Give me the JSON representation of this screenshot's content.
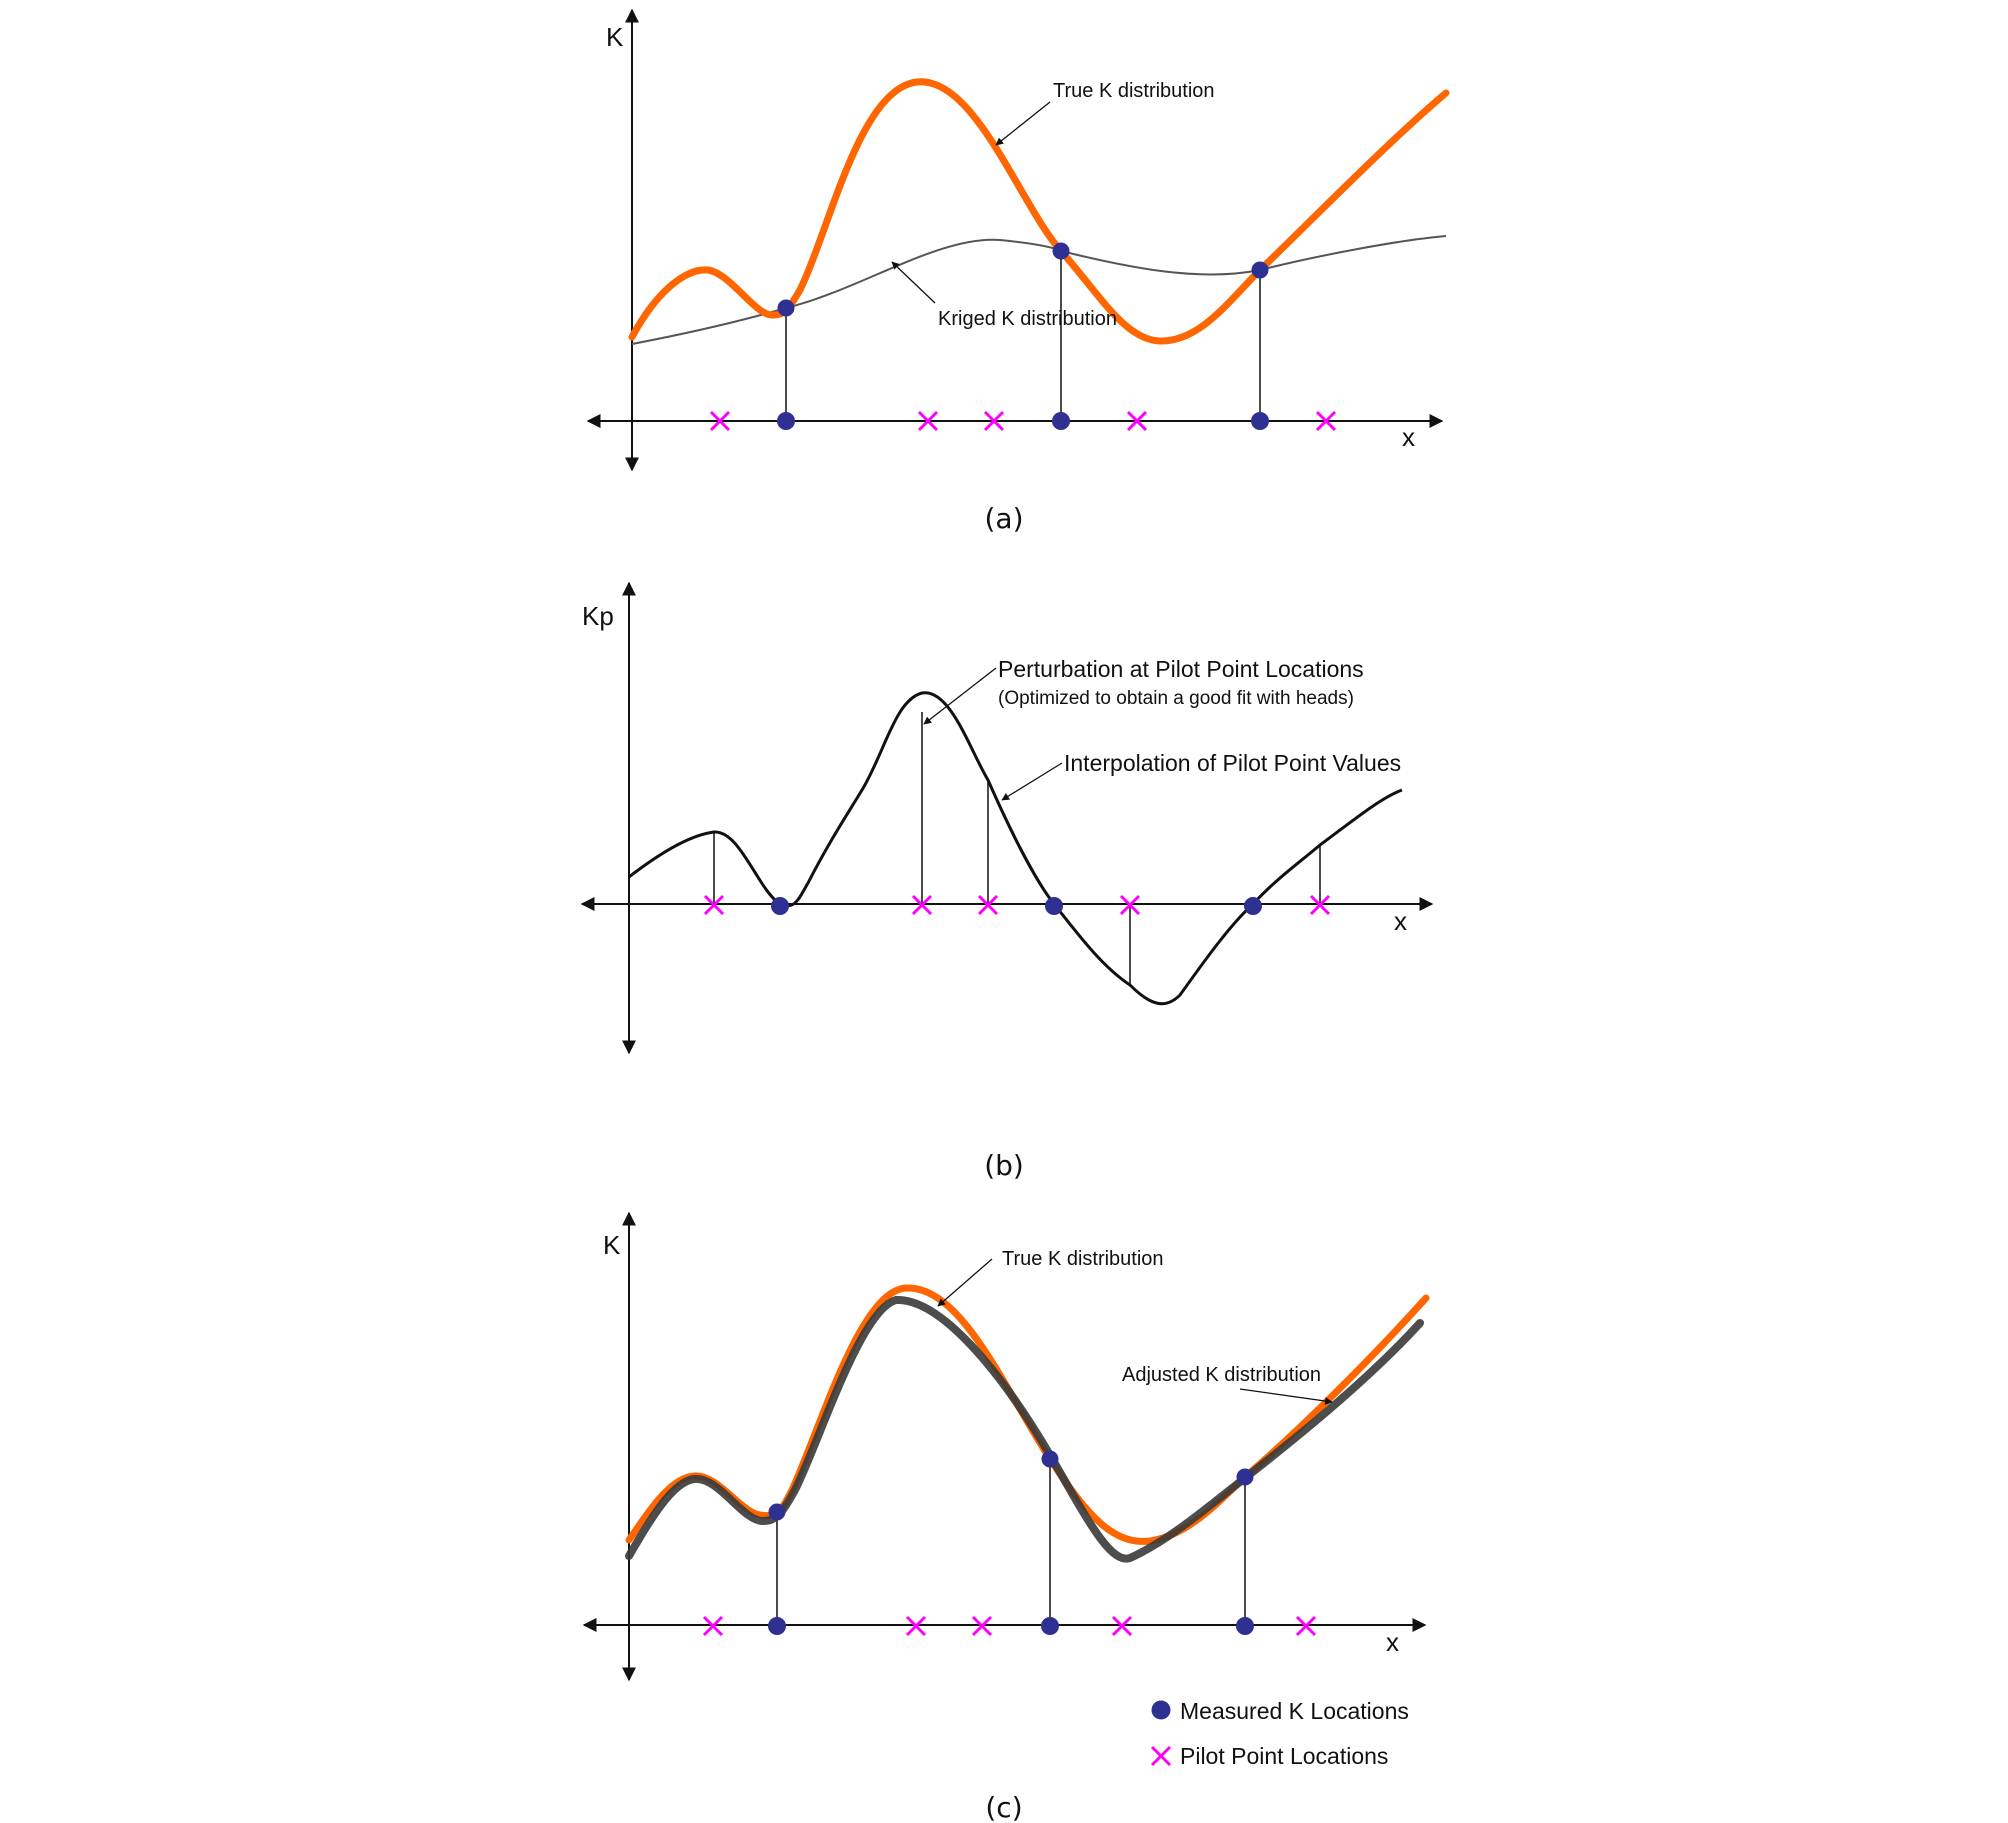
{
  "colors": {
    "true_k": "#ff6600",
    "kriged": "#555555",
    "adjusted": "#3a3a3a",
    "measured": "#2e3192",
    "pilot": "#ff00ff",
    "axis": "#111111"
  },
  "panels": [
    {
      "id": "a",
      "caption": "(a)",
      "y_axis_label": "K",
      "x_axis_label": "x",
      "annotations": [
        {
          "id": "true-k",
          "text": "True K distribution"
        },
        {
          "id": "kriged-k",
          "text": "Kriged K distribution"
        }
      ]
    },
    {
      "id": "b",
      "caption": "(b)",
      "y_axis_label": "Kp",
      "x_axis_label": "x",
      "annotations": [
        {
          "id": "perturbation",
          "text": "Perturbation at Pilot Point Locations"
        },
        {
          "id": "perturbation-sub",
          "text": "(Optimized to obtain a good fit with heads)"
        },
        {
          "id": "interpolation",
          "text": "Interpolation of Pilot Point Values"
        }
      ]
    },
    {
      "id": "c",
      "caption": "(c)",
      "y_axis_label": "K",
      "x_axis_label": "x",
      "annotations": [
        {
          "id": "true-k",
          "text": "True K distribution"
        },
        {
          "id": "adjusted-k",
          "text": "Adjusted K distribution"
        }
      ]
    }
  ],
  "legend": {
    "measured": {
      "icon": "filled-circle",
      "text": "Measured K Locations"
    },
    "pilot": {
      "icon": "x-mark",
      "text": "Pilot Point Locations"
    }
  }
}
